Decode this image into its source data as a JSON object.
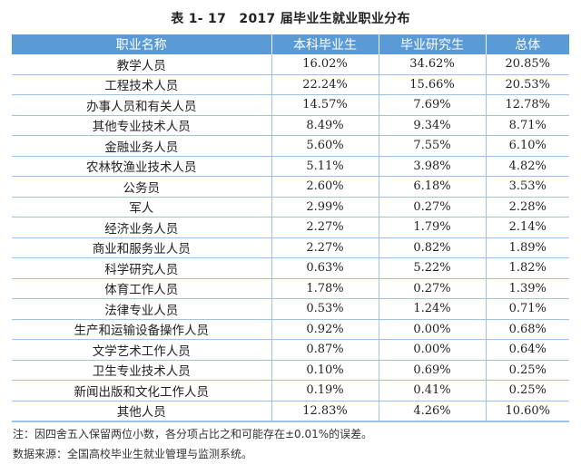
{
  "title": "表 1- 17　2017 届毕业生就业职业分布",
  "headers": [
    "职业名称",
    "本科毕业生",
    "毕业研究生",
    "总体"
  ],
  "rows": [
    [
      "教学人员",
      "16.02%",
      "34.62%",
      "20.85%"
    ],
    [
      "工程技术人员",
      "22.24%",
      "15.66%",
      "20.53%"
    ],
    [
      "办事人员和有关人员",
      "14.57%",
      "7.69%",
      "12.78%"
    ],
    [
      "其他专业技术人员",
      "8.49%",
      "9.34%",
      "8.71%"
    ],
    [
      "金融业务人员",
      "5.60%",
      "7.55%",
      "6.10%"
    ],
    [
      "农林牧渔业技术人员",
      "5.11%",
      "3.98%",
      "4.82%"
    ],
    [
      "公务员",
      "2.60%",
      "6.18%",
      "3.53%"
    ],
    [
      "军人",
      "2.99%",
      "0.27%",
      "2.28%"
    ],
    [
      "经济业务人员",
      "2.27%",
      "1.79%",
      "2.14%"
    ],
    [
      "商业和服务业人员",
      "2.27%",
      "0.82%",
      "1.89%"
    ],
    [
      "科学研究人员",
      "0.63%",
      "5.22%",
      "1.82%"
    ],
    [
      "体育工作人员",
      "1.78%",
      "0.27%",
      "1.39%"
    ],
    [
      "法律专业人员",
      "0.53%",
      "1.24%",
      "0.71%"
    ],
    [
      "生产和运输设备操作人员",
      "0.92%",
      "0.00%",
      "0.68%"
    ],
    [
      "文学艺术工作人员",
      "0.87%",
      "0.00%",
      "0.64%"
    ],
    [
      "卫生专业技术人员",
      "0.10%",
      "0.69%",
      "0.25%"
    ],
    [
      "新闻出版和文化工作人员",
      "0.19%",
      "0.41%",
      "0.25%"
    ],
    [
      "其他人员",
      "12.83%",
      "4.26%",
      "10.60%"
    ]
  ],
  "notes": {
    "rounding": "注：因四舍五入保留两位小数，各分项占比之和可能存在±0.01%的误差。",
    "source": "数据来源：全国高校毕业生就业管理与监测系统。"
  },
  "colors": {
    "header_bg": "#5b9bd5",
    "header_text": "#ffffff",
    "grid_line": "#9dc3e6"
  }
}
